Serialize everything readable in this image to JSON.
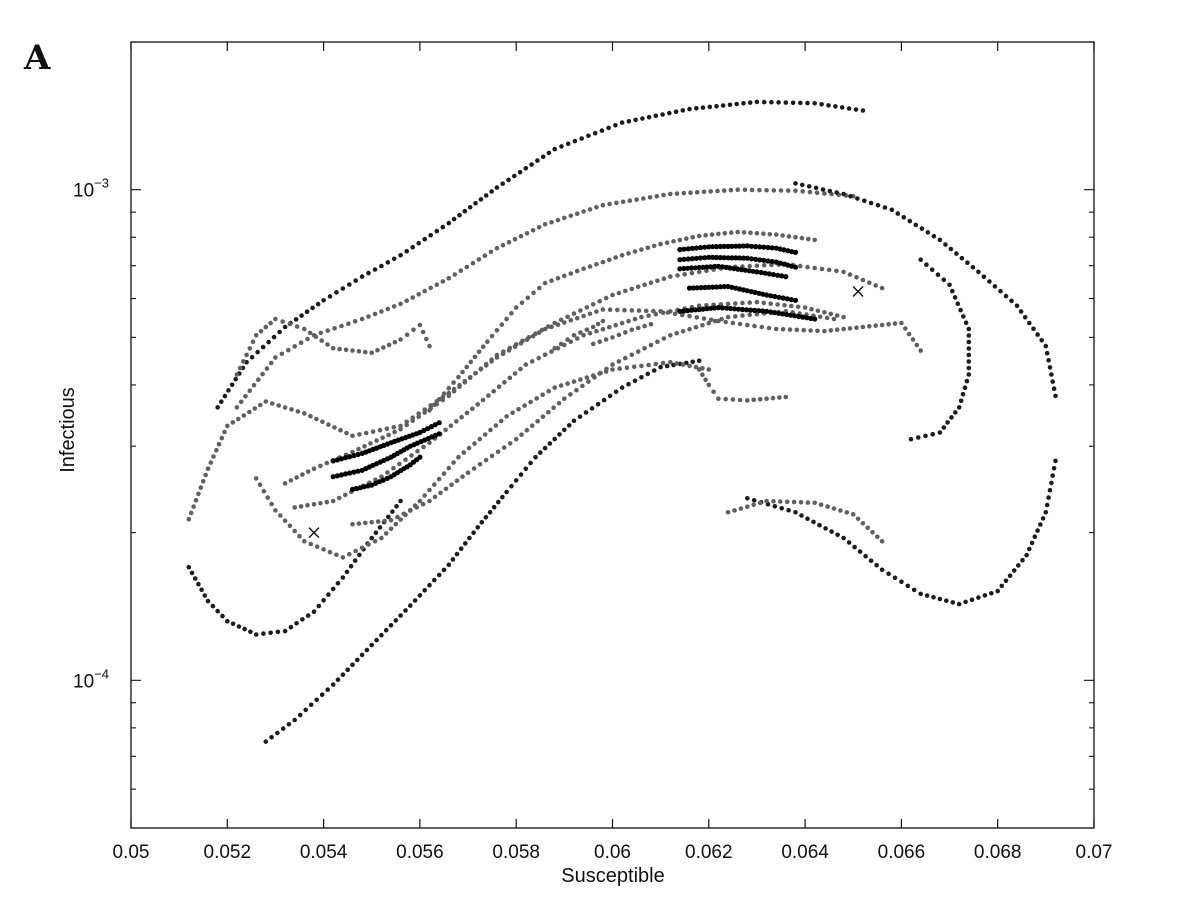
{
  "panel_label": "A",
  "chart_data": {
    "type": "scatter",
    "title": "",
    "xlabel": "Susceptible",
    "ylabel": "Infectious",
    "xlim": [
      0.05,
      0.07
    ],
    "ylim": [
      5e-05,
      0.002
    ],
    "yscale": "log",
    "grid": false,
    "legend": "none",
    "x_ticks": [
      {
        "value": 0.05,
        "label": "0.05"
      },
      {
        "value": 0.052,
        "label": "0.052"
      },
      {
        "value": 0.054,
        "label": "0.054"
      },
      {
        "value": 0.056,
        "label": "0.056"
      },
      {
        "value": 0.058,
        "label": "0.058"
      },
      {
        "value": 0.06,
        "label": "0.06"
      },
      {
        "value": 0.062,
        "label": "0.062"
      },
      {
        "value": 0.064,
        "label": "0.064"
      },
      {
        "value": 0.066,
        "label": "0.066"
      },
      {
        "value": 0.068,
        "label": "0.068"
      },
      {
        "value": 0.07,
        "label": "0.07"
      }
    ],
    "y_ticks": [
      {
        "value": 0.0001,
        "base": "10",
        "exp": "−4"
      },
      {
        "value": 0.001,
        "base": "10",
        "exp": "−3"
      }
    ],
    "colors": {
      "dark": "#1c1c1c",
      "gray": "#606060",
      "black": "#000000"
    },
    "markers": [
      {
        "x": 0.0538,
        "y": 0.0002
      },
      {
        "x": 0.0651,
        "y": 0.00062
      }
    ],
    "series": [
      {
        "color": "dark",
        "points": [
          [
            0.0528,
            7.5e-05
          ],
          [
            0.0534,
            8.3e-05
          ],
          [
            0.0542,
            9.8e-05
          ],
          [
            0.055,
            0.000118
          ],
          [
            0.0558,
            0.000142
          ],
          [
            0.0566,
            0.000172
          ],
          [
            0.0572,
            0.000205
          ],
          [
            0.0578,
            0.000242
          ],
          [
            0.0584,
            0.000285
          ],
          [
            0.0592,
            0.000338
          ],
          [
            0.0602,
            0.000395
          ],
          [
            0.061,
            0.000435
          ],
          [
            0.0618,
            0.000448
          ]
        ]
      },
      {
        "color": "dark",
        "points": [
          [
            0.0512,
            0.00017
          ],
          [
            0.0516,
            0.000145
          ],
          [
            0.052,
            0.000132
          ],
          [
            0.0526,
            0.000124
          ],
          [
            0.0532,
            0.000126
          ],
          [
            0.0538,
            0.000138
          ],
          [
            0.0544,
            0.000162
          ],
          [
            0.055,
            0.000195
          ],
          [
            0.0556,
            0.000232
          ]
        ]
      },
      {
        "color": "dark",
        "points": [
          [
            0.0518,
            0.00036
          ],
          [
            0.0524,
            0.000445
          ],
          [
            0.0532,
            0.000525
          ],
          [
            0.054,
            0.000595
          ],
          [
            0.0548,
            0.000665
          ],
          [
            0.0556,
            0.000735
          ],
          [
            0.0566,
            0.000855
          ],
          [
            0.0576,
            0.00101
          ],
          [
            0.0588,
            0.00121
          ],
          [
            0.0602,
            0.00137
          ],
          [
            0.0616,
            0.00146
          ],
          [
            0.063,
            0.00151
          ],
          [
            0.0642,
            0.0015
          ],
          [
            0.0652,
            0.00145
          ]
        ]
      },
      {
        "color": "gray",
        "points": [
          [
            0.0522,
            0.00036
          ],
          [
            0.053,
            0.000455
          ],
          [
            0.0538,
            0.000505
          ],
          [
            0.0548,
            0.000545
          ],
          [
            0.0556,
            0.000585
          ],
          [
            0.0566,
            0.00066
          ],
          [
            0.0576,
            0.00076
          ],
          [
            0.0586,
            0.00085
          ],
          [
            0.0598,
            0.00093
          ],
          [
            0.0612,
            0.00098
          ],
          [
            0.0626,
            0.001
          ],
          [
            0.0638,
            0.000995
          ],
          [
            0.065,
            0.00097
          ]
        ]
      },
      {
        "color": "dark",
        "points": [
          [
            0.0638,
            0.00103
          ],
          [
            0.0648,
            0.00098
          ],
          [
            0.0658,
            0.00091
          ],
          [
            0.0668,
            0.00079
          ],
          [
            0.0676,
            0.00068
          ],
          [
            0.0684,
            0.00058
          ],
          [
            0.069,
            0.00048
          ],
          [
            0.0692,
            0.00038
          ]
        ]
      },
      {
        "color": "dark",
        "points": [
          [
            0.0664,
            0.00072
          ],
          [
            0.067,
            0.00064
          ],
          [
            0.0674,
            0.00052
          ],
          [
            0.0674,
            0.00042
          ],
          [
            0.0672,
            0.00036
          ],
          [
            0.0668,
            0.00032
          ],
          [
            0.0662,
            0.00031
          ]
        ]
      },
      {
        "color": "dark",
        "points": [
          [
            0.0692,
            0.00028
          ],
          [
            0.069,
            0.00022
          ],
          [
            0.0686,
            0.00018
          ],
          [
            0.068,
            0.000152
          ],
          [
            0.0672,
            0.000143
          ],
          [
            0.0664,
            0.00015
          ],
          [
            0.0656,
            0.000168
          ],
          [
            0.0648,
            0.000195
          ],
          [
            0.0638,
            0.00022
          ],
          [
            0.0628,
            0.000235
          ]
        ]
      },
      {
        "color": "gray",
        "points": [
          [
            0.0512,
            0.000213
          ],
          [
            0.0516,
            0.00027
          ],
          [
            0.052,
            0.00033
          ],
          [
            0.0528,
            0.00037
          ],
          [
            0.0536,
            0.00035
          ],
          [
            0.0546,
            0.000315
          ],
          [
            0.0556,
            0.00033
          ],
          [
            0.0566,
            0.000385
          ],
          [
            0.0576,
            0.000455
          ],
          [
            0.0586,
            0.00052
          ],
          [
            0.0598,
            0.00057
          ],
          [
            0.061,
            0.000565
          ],
          [
            0.0622,
            0.00054
          ],
          [
            0.0634,
            0.00052
          ],
          [
            0.0644,
            0.000515
          ],
          [
            0.0652,
            0.000525
          ],
          [
            0.066,
            0.000535
          ],
          [
            0.0664,
            0.00047
          ]
        ]
      },
      {
        "color": "gray",
        "points": [
          [
            0.0526,
            0.000258
          ],
          [
            0.053,
            0.000222
          ],
          [
            0.0536,
            0.000192
          ],
          [
            0.0544,
            0.000178
          ],
          [
            0.0552,
            0.000195
          ],
          [
            0.056,
            0.000232
          ],
          [
            0.0568,
            0.000285
          ],
          [
            0.0578,
            0.000345
          ],
          [
            0.0588,
            0.000395
          ],
          [
            0.06,
            0.00043
          ],
          [
            0.0612,
            0.000445
          ],
          [
            0.062,
            0.00043
          ]
        ]
      },
      {
        "color": "gray",
        "points": [
          [
            0.0522,
            0.00042
          ],
          [
            0.0526,
            0.000505
          ],
          [
            0.053,
            0.000545
          ],
          [
            0.0536,
            0.00052
          ],
          [
            0.0542,
            0.000475
          ],
          [
            0.055,
            0.000465
          ],
          [
            0.0556,
            0.000495
          ],
          [
            0.056,
            0.00053
          ],
          [
            0.0562,
            0.00048
          ]
        ]
      },
      {
        "color": "gray",
        "points": [
          [
            0.0532,
            0.000252
          ],
          [
            0.0538,
            0.00027
          ],
          [
            0.0546,
            0.000292
          ],
          [
            0.0556,
            0.000325
          ],
          [
            0.0566,
            0.00038
          ],
          [
            0.0576,
            0.00046
          ],
          [
            0.0588,
            0.000535
          ],
          [
            0.06,
            0.00061
          ],
          [
            0.0612,
            0.000665
          ],
          [
            0.0624,
            0.000695
          ],
          [
            0.0636,
            0.000705
          ],
          [
            0.0648,
            0.00068
          ],
          [
            0.0656,
            0.00063
          ]
        ]
      },
      {
        "color": "gray",
        "points": [
          [
            0.0534,
            0.000225
          ],
          [
            0.0542,
            0.000232
          ],
          [
            0.0552,
            0.00026
          ],
          [
            0.0562,
            0.000305
          ],
          [
            0.0572,
            0.000365
          ],
          [
            0.0582,
            0.00044
          ],
          [
            0.0594,
            0.000505
          ],
          [
            0.0606,
            0.00055
          ],
          [
            0.0618,
            0.00058
          ],
          [
            0.063,
            0.00059
          ],
          [
            0.064,
            0.000575
          ],
          [
            0.0648,
            0.00055
          ]
        ]
      },
      {
        "color": "gray",
        "points": [
          [
            0.0546,
            0.000208
          ],
          [
            0.0554,
            0.000212
          ],
          [
            0.0562,
            0.000232
          ],
          [
            0.057,
            0.000265
          ],
          [
            0.058,
            0.00031
          ],
          [
            0.059,
            0.000375
          ],
          [
            0.06,
            0.00044
          ],
          [
            0.0612,
            0.000505
          ],
          [
            0.0624,
            0.00055
          ],
          [
            0.0636,
            0.000565
          ],
          [
            0.0646,
            0.000545
          ]
        ]
      },
      {
        "color": "gray",
        "points": [
          [
            0.0562,
            0.000355
          ],
          [
            0.0568,
            0.000415
          ],
          [
            0.0574,
            0.00049
          ],
          [
            0.058,
            0.000575
          ],
          [
            0.0586,
            0.000645
          ],
          [
            0.0594,
            0.00069
          ],
          [
            0.0602,
            0.000735
          ],
          [
            0.061,
            0.000775
          ],
          [
            0.0618,
            0.000805
          ],
          [
            0.0626,
            0.00082
          ],
          [
            0.0634,
            0.00081
          ],
          [
            0.0642,
            0.00079
          ]
        ]
      },
      {
        "color": "gray",
        "points": [
          [
            0.0618,
            0.00043
          ],
          [
            0.062,
            0.0004
          ],
          [
            0.0622,
            0.000375
          ],
          [
            0.0628,
            0.000372
          ],
          [
            0.0636,
            0.000378
          ]
        ]
      },
      {
        "color": "gray",
        "points": [
          [
            0.0624,
            0.00022
          ],
          [
            0.0632,
            0.000232
          ],
          [
            0.0642,
            0.00023
          ],
          [
            0.065,
            0.000218
          ],
          [
            0.0656,
            0.000192
          ]
        ]
      },
      {
        "color": "black",
        "points": [
          [
            0.0542,
            0.00028
          ],
          [
            0.0548,
            0.00029
          ],
          [
            0.0554,
            0.000305
          ],
          [
            0.056,
            0.00032
          ],
          [
            0.0564,
            0.000335
          ]
        ]
      },
      {
        "color": "black",
        "points": [
          [
            0.0542,
            0.00026
          ],
          [
            0.0548,
            0.000268
          ],
          [
            0.0554,
            0.000285
          ],
          [
            0.0558,
            0.0003
          ],
          [
            0.0564,
            0.000318
          ]
        ]
      },
      {
        "color": "black",
        "points": [
          [
            0.0546,
            0.000245
          ],
          [
            0.055,
            0.00025
          ],
          [
            0.0554,
            0.00026
          ],
          [
            0.0558,
            0.000275
          ],
          [
            0.056,
            0.000285
          ]
        ]
      },
      {
        "color": "black",
        "points": [
          [
            0.0614,
            0.000755
          ],
          [
            0.062,
            0.000765
          ],
          [
            0.0628,
            0.000768
          ],
          [
            0.0634,
            0.00076
          ],
          [
            0.0638,
            0.000745
          ]
        ]
      },
      {
        "color": "black",
        "points": [
          [
            0.0614,
            0.00072
          ],
          [
            0.062,
            0.000728
          ],
          [
            0.0628,
            0.000725
          ],
          [
            0.0634,
            0.000712
          ],
          [
            0.0638,
            0.000695
          ]
        ]
      },
      {
        "color": "black",
        "points": [
          [
            0.0614,
            0.00069
          ],
          [
            0.0622,
            0.000698
          ],
          [
            0.063,
            0.00068
          ],
          [
            0.0636,
            0.000665
          ]
        ]
      },
      {
        "color": "black",
        "points": [
          [
            0.0616,
            0.00063
          ],
          [
            0.0624,
            0.000635
          ],
          [
            0.0632,
            0.00061
          ],
          [
            0.0638,
            0.000595
          ]
        ]
      },
      {
        "color": "black",
        "points": [
          [
            0.0614,
            0.000565
          ],
          [
            0.0622,
            0.000575
          ],
          [
            0.0632,
            0.000565
          ],
          [
            0.0642,
            0.000545
          ]
        ]
      },
      {
        "color": "gray",
        "points": [
          [
            0.0588,
            0.000475
          ],
          [
            0.0592,
            0.000505
          ],
          [
            0.0596,
            0.000525
          ],
          [
            0.0598,
            0.00054
          ]
        ]
      },
      {
        "color": "gray",
        "points": [
          [
            0.0596,
            0.000485
          ],
          [
            0.06,
            0.0005
          ],
          [
            0.0604,
            0.000518
          ],
          [
            0.0608,
            0.000532
          ]
        ]
      }
    ]
  }
}
